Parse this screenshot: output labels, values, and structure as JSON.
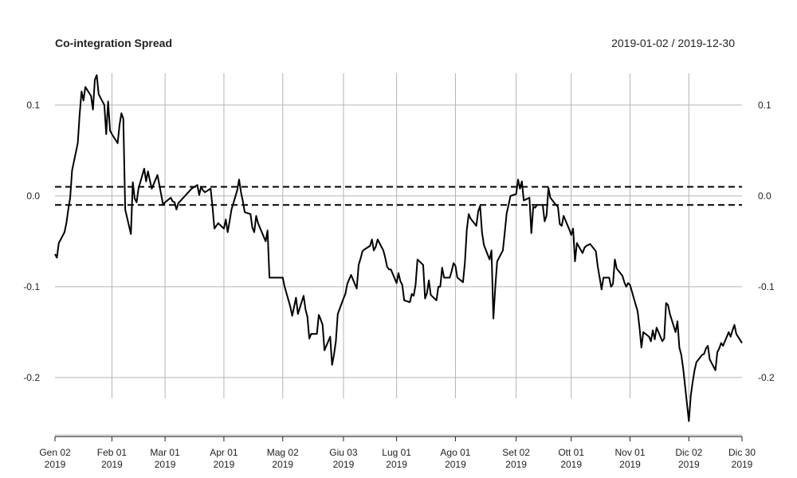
{
  "chart_data": {
    "type": "line",
    "title": "Co-integration Spread",
    "date_range": "2019-01-02 / 2019-12-30",
    "xlabel": "",
    "ylabel": "",
    "ylim": [
      -0.265,
      0.135
    ],
    "y_ticks": [
      0.1,
      0.0,
      -0.1,
      -0.2
    ],
    "y_tick_labels": [
      "0.1",
      "0.0",
      "-0.1",
      "-0.2"
    ],
    "x_ticks": [
      "2019-01-02",
      "2019-02-01",
      "2019-03-01",
      "2019-04-01",
      "2019-05-02",
      "2019-06-03",
      "2019-07-01",
      "2019-08-01",
      "2019-09-02",
      "2019-10-01",
      "2019-11-01",
      "2019-12-02",
      "2019-12-30"
    ],
    "x_tick_labels": [
      [
        "Gen 02",
        "2019"
      ],
      [
        "Feb 01",
        "2019"
      ],
      [
        "Mar 01",
        "2019"
      ],
      [
        "Apr 01",
        "2019"
      ],
      [
        "Mag 02",
        "2019"
      ],
      [
        "Giu 03",
        "2019"
      ],
      [
        "Lug 01",
        "2019"
      ],
      [
        "Ago 01",
        "2019"
      ],
      [
        "Set 02",
        "2019"
      ],
      [
        "Ott 01",
        "2019"
      ],
      [
        "Nov 01",
        "2019"
      ],
      [
        "Dic 02",
        "2019"
      ],
      [
        "Dic 30",
        "2019"
      ]
    ],
    "grid": true,
    "threshold_lines": [
      0.01,
      -0.01
    ],
    "series": [
      {
        "color": "#000000",
        "points": [
          [
            "2019-01-02",
            -0.064
          ],
          [
            "2019-01-03",
            -0.068
          ],
          [
            "2019-01-04",
            -0.052
          ],
          [
            "2019-01-07",
            -0.04
          ],
          [
            "2019-01-08",
            -0.03
          ],
          [
            "2019-01-09",
            -0.015
          ],
          [
            "2019-01-10",
            -0.002
          ],
          [
            "2019-01-11",
            0.028
          ],
          [
            "2019-01-14",
            0.058
          ],
          [
            "2019-01-15",
            0.09
          ],
          [
            "2019-01-16",
            0.115
          ],
          [
            "2019-01-17",
            0.105
          ],
          [
            "2019-01-18",
            0.12
          ],
          [
            "2019-01-21",
            0.11
          ],
          [
            "2019-01-22",
            0.095
          ],
          [
            "2019-01-23",
            0.128
          ],
          [
            "2019-01-24",
            0.133
          ],
          [
            "2019-01-25",
            0.112
          ],
          [
            "2019-01-28",
            0.1
          ],
          [
            "2019-01-29",
            0.068
          ],
          [
            "2019-01-30",
            0.104
          ],
          [
            "2019-01-31",
            0.072
          ],
          [
            "2019-02-01",
            0.068
          ],
          [
            "2019-02-04",
            0.058
          ],
          [
            "2019-02-05",
            0.078
          ],
          [
            "2019-02-06",
            0.091
          ],
          [
            "2019-02-07",
            0.085
          ],
          [
            "2019-02-08",
            -0.015
          ],
          [
            "2019-02-11",
            -0.042
          ],
          [
            "2019-02-12",
            0.015
          ],
          [
            "2019-02-13",
            -0.003
          ],
          [
            "2019-02-14",
            -0.007
          ],
          [
            "2019-02-15",
            0.008
          ],
          [
            "2019-02-18",
            0.03
          ],
          [
            "2019-02-19",
            0.016
          ],
          [
            "2019-02-20",
            0.027
          ],
          [
            "2019-02-21",
            0.017
          ],
          [
            "2019-02-22",
            0.008
          ],
          [
            "2019-02-25",
            0.023
          ],
          [
            "2019-02-26",
            0.012
          ],
          [
            "2019-02-27",
            0.001
          ],
          [
            "2019-02-28",
            -0.01
          ],
          [
            "2019-03-01",
            -0.007
          ],
          [
            "2019-03-04",
            -0.002
          ],
          [
            "2019-03-05",
            -0.006
          ],
          [
            "2019-03-06",
            -0.007
          ],
          [
            "2019-03-07",
            -0.015
          ],
          [
            "2019-03-08",
            -0.008
          ],
          [
            "2019-03-15",
            0.008
          ],
          [
            "2019-03-18",
            0.012
          ],
          [
            "2019-03-19",
            0.001
          ],
          [
            "2019-03-20",
            0.01
          ],
          [
            "2019-03-21",
            0.006
          ],
          [
            "2019-03-22",
            0.004
          ],
          [
            "2019-03-25",
            0.008
          ],
          [
            "2019-03-26",
            -0.012
          ],
          [
            "2019-03-27",
            -0.036
          ],
          [
            "2019-03-28",
            -0.033
          ],
          [
            "2019-03-29",
            -0.03
          ],
          [
            "2019-04-01",
            -0.036
          ],
          [
            "2019-04-02",
            -0.026
          ],
          [
            "2019-04-03",
            -0.04
          ],
          [
            "2019-04-04",
            -0.028
          ],
          [
            "2019-04-05",
            -0.015
          ],
          [
            "2019-04-08",
            0.006
          ],
          [
            "2019-04-09",
            0.018
          ],
          [
            "2019-04-10",
            0.004
          ],
          [
            "2019-04-11",
            -0.006
          ],
          [
            "2019-04-12",
            -0.018
          ],
          [
            "2019-04-15",
            -0.02
          ],
          [
            "2019-04-16",
            -0.035
          ],
          [
            "2019-04-17",
            -0.04
          ],
          [
            "2019-04-18",
            -0.022
          ],
          [
            "2019-04-19",
            -0.03
          ],
          [
            "2019-04-22",
            -0.045
          ],
          [
            "2019-04-23",
            -0.05
          ],
          [
            "2019-04-24",
            -0.038
          ],
          [
            "2019-04-25",
            -0.09
          ],
          [
            "2019-04-30",
            -0.09
          ],
          [
            "2019-05-02",
            -0.09
          ],
          [
            "2019-05-03",
            -0.1
          ],
          [
            "2019-05-06",
            -0.122
          ],
          [
            "2019-05-07",
            -0.132
          ],
          [
            "2019-05-08",
            -0.122
          ],
          [
            "2019-05-09",
            -0.112
          ],
          [
            "2019-05-10",
            -0.13
          ],
          [
            "2019-05-13",
            -0.11
          ],
          [
            "2019-05-14",
            -0.125
          ],
          [
            "2019-05-15",
            -0.133
          ],
          [
            "2019-05-16",
            -0.157
          ],
          [
            "2019-05-17",
            -0.152
          ],
          [
            "2019-05-20",
            -0.152
          ],
          [
            "2019-05-21",
            -0.131
          ],
          [
            "2019-05-22",
            -0.136
          ],
          [
            "2019-05-23",
            -0.142
          ],
          [
            "2019-05-24",
            -0.17
          ],
          [
            "2019-05-27",
            -0.155
          ],
          [
            "2019-05-28",
            -0.186
          ],
          [
            "2019-05-29",
            -0.175
          ],
          [
            "2019-05-30",
            -0.16
          ],
          [
            "2019-05-31",
            -0.13
          ],
          [
            "2019-06-03",
            -0.113
          ],
          [
            "2019-06-04",
            -0.108
          ],
          [
            "2019-06-05",
            -0.097
          ],
          [
            "2019-06-06",
            -0.092
          ],
          [
            "2019-06-07",
            -0.087
          ],
          [
            "2019-06-10",
            -0.102
          ],
          [
            "2019-06-11",
            -0.076
          ],
          [
            "2019-06-12",
            -0.069
          ],
          [
            "2019-06-13",
            -0.061
          ],
          [
            "2019-06-14",
            -0.059
          ],
          [
            "2019-06-17",
            -0.055
          ],
          [
            "2019-06-18",
            -0.048
          ],
          [
            "2019-06-19",
            -0.06
          ],
          [
            "2019-06-20",
            -0.056
          ],
          [
            "2019-06-21",
            -0.048
          ],
          [
            "2019-06-24",
            -0.06
          ],
          [
            "2019-06-25",
            -0.068
          ],
          [
            "2019-06-26",
            -0.078
          ],
          [
            "2019-06-27",
            -0.081
          ],
          [
            "2019-06-28",
            -0.081
          ],
          [
            "2019-07-01",
            -0.096
          ],
          [
            "2019-07-02",
            -0.085
          ],
          [
            "2019-07-03",
            -0.094
          ],
          [
            "2019-07-04",
            -0.098
          ],
          [
            "2019-07-05",
            -0.115
          ],
          [
            "2019-07-08",
            -0.117
          ],
          [
            "2019-07-09",
            -0.108
          ],
          [
            "2019-07-10",
            -0.11
          ],
          [
            "2019-07-11",
            -0.098
          ],
          [
            "2019-07-12",
            -0.07
          ],
          [
            "2019-07-15",
            -0.076
          ],
          [
            "2019-07-16",
            -0.113
          ],
          [
            "2019-07-17",
            -0.107
          ],
          [
            "2019-07-18",
            -0.093
          ],
          [
            "2019-07-19",
            -0.109
          ],
          [
            "2019-07-22",
            -0.115
          ],
          [
            "2019-07-23",
            -0.1
          ],
          [
            "2019-07-24",
            -0.1
          ],
          [
            "2019-07-25",
            -0.079
          ],
          [
            "2019-07-26",
            -0.09
          ],
          [
            "2019-07-29",
            -0.09
          ],
          [
            "2019-07-30",
            -0.083
          ],
          [
            "2019-07-31",
            -0.074
          ],
          [
            "2019-08-01",
            -0.077
          ],
          [
            "2019-08-02",
            -0.09
          ],
          [
            "2019-08-05",
            -0.095
          ],
          [
            "2019-08-06",
            -0.073
          ],
          [
            "2019-08-07",
            -0.037
          ],
          [
            "2019-08-08",
            -0.02
          ],
          [
            "2019-08-09",
            -0.025
          ],
          [
            "2019-08-12",
            -0.033
          ],
          [
            "2019-08-13",
            -0.017
          ],
          [
            "2019-08-14",
            -0.011
          ],
          [
            "2019-08-15",
            -0.04
          ],
          [
            "2019-08-16",
            -0.054
          ],
          [
            "2019-08-19",
            -0.07
          ],
          [
            "2019-08-20",
            -0.06
          ],
          [
            "2019-08-21",
            -0.135
          ],
          [
            "2019-08-22",
            -0.1
          ],
          [
            "2019-08-23",
            -0.072
          ],
          [
            "2019-08-26",
            -0.06
          ],
          [
            "2019-08-27",
            -0.04
          ],
          [
            "2019-08-28",
            -0.019
          ],
          [
            "2019-08-29",
            -0.01
          ],
          [
            "2019-08-30",
            0.0
          ],
          [
            "2019-09-02",
            0.002
          ],
          [
            "2019-09-03",
            0.018
          ],
          [
            "2019-09-04",
            0.008
          ],
          [
            "2019-09-05",
            0.016
          ],
          [
            "2019-09-06",
            -0.005
          ],
          [
            "2019-09-09",
            -0.002
          ],
          [
            "2019-09-10",
            -0.041
          ],
          [
            "2019-09-11",
            -0.012
          ],
          [
            "2019-09-12",
            -0.013
          ],
          [
            "2019-09-13",
            -0.01
          ],
          [
            "2019-09-16",
            -0.01
          ],
          [
            "2019-09-17",
            -0.028
          ],
          [
            "2019-09-18",
            -0.022
          ],
          [
            "2019-09-19",
            0.009
          ],
          [
            "2019-09-20",
            -0.002
          ],
          [
            "2019-09-23",
            -0.01
          ],
          [
            "2019-09-24",
            -0.012
          ],
          [
            "2019-09-25",
            -0.031
          ],
          [
            "2019-09-26",
            -0.033
          ],
          [
            "2019-09-27",
            -0.022
          ],
          [
            "2019-09-30",
            -0.037
          ],
          [
            "2019-10-01",
            -0.043
          ],
          [
            "2019-10-02",
            -0.036
          ],
          [
            "2019-10-03",
            -0.072
          ],
          [
            "2019-10-04",
            -0.052
          ],
          [
            "2019-10-07",
            -0.063
          ],
          [
            "2019-10-08",
            -0.057
          ],
          [
            "2019-10-09",
            -0.055
          ],
          [
            "2019-10-10",
            -0.054
          ],
          [
            "2019-10-11",
            -0.053
          ],
          [
            "2019-10-14",
            -0.061
          ],
          [
            "2019-10-15",
            -0.078
          ],
          [
            "2019-10-16",
            -0.09
          ],
          [
            "2019-10-17",
            -0.103
          ],
          [
            "2019-10-18",
            -0.09
          ],
          [
            "2019-10-21",
            -0.09
          ],
          [
            "2019-10-22",
            -0.1
          ],
          [
            "2019-10-23",
            -0.097
          ],
          [
            "2019-10-24",
            -0.07
          ],
          [
            "2019-10-25",
            -0.08
          ],
          [
            "2019-10-28",
            -0.088
          ],
          [
            "2019-10-29",
            -0.095
          ],
          [
            "2019-10-30",
            -0.1
          ],
          [
            "2019-10-31",
            -0.096
          ],
          [
            "2019-11-01",
            -0.098
          ],
          [
            "2019-11-04",
            -0.12
          ],
          [
            "2019-11-05",
            -0.127
          ],
          [
            "2019-11-06",
            -0.145
          ],
          [
            "2019-11-07",
            -0.167
          ],
          [
            "2019-11-08",
            -0.15
          ],
          [
            "2019-11-11",
            -0.155
          ],
          [
            "2019-11-12",
            -0.16
          ],
          [
            "2019-11-13",
            -0.148
          ],
          [
            "2019-11-14",
            -0.158
          ],
          [
            "2019-11-15",
            -0.145
          ],
          [
            "2019-11-18",
            -0.16
          ],
          [
            "2019-11-19",
            -0.157
          ],
          [
            "2019-11-20",
            -0.118
          ],
          [
            "2019-11-21",
            -0.12
          ],
          [
            "2019-11-22",
            -0.13
          ],
          [
            "2019-11-25",
            -0.15
          ],
          [
            "2019-11-26",
            -0.138
          ],
          [
            "2019-11-27",
            -0.167
          ],
          [
            "2019-11-28",
            -0.175
          ],
          [
            "2019-11-29",
            -0.19
          ],
          [
            "2019-12-02",
            -0.248
          ],
          [
            "2019-12-03",
            -0.22
          ],
          [
            "2019-12-04",
            -0.205
          ],
          [
            "2019-12-05",
            -0.192
          ],
          [
            "2019-12-06",
            -0.183
          ],
          [
            "2019-12-09",
            -0.175
          ],
          [
            "2019-12-10",
            -0.174
          ],
          [
            "2019-12-11",
            -0.168
          ],
          [
            "2019-12-12",
            -0.165
          ],
          [
            "2019-12-13",
            -0.18
          ],
          [
            "2019-12-16",
            -0.192
          ],
          [
            "2019-12-17",
            -0.172
          ],
          [
            "2019-12-18",
            -0.168
          ],
          [
            "2019-12-19",
            -0.162
          ],
          [
            "2019-12-20",
            -0.165
          ],
          [
            "2019-12-23",
            -0.15
          ],
          [
            "2019-12-24",
            -0.155
          ],
          [
            "2019-12-25",
            -0.148
          ],
          [
            "2019-12-26",
            -0.142
          ],
          [
            "2019-12-27",
            -0.152
          ],
          [
            "2019-12-30",
            -0.162
          ]
        ]
      }
    ]
  }
}
